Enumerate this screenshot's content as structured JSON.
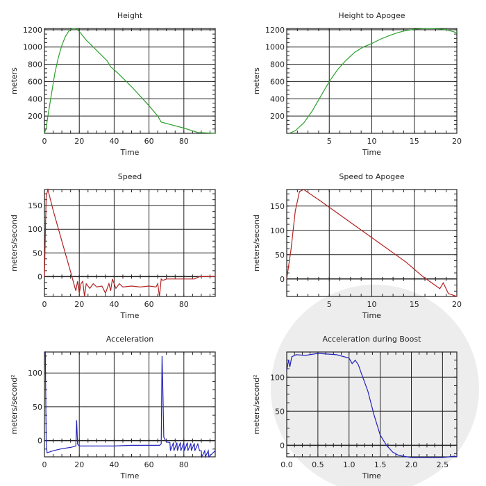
{
  "chart_data": [
    {
      "type": "line",
      "title": "Height",
      "xlabel": "Time",
      "ylabel": "meters",
      "xlim": [
        0,
        98
      ],
      "ylim": [
        0,
        1215
      ],
      "xticks": [
        0,
        20,
        40,
        60,
        80
      ],
      "yticks": [
        200,
        400,
        600,
        800,
        1000,
        1200
      ],
      "grid": true,
      "color": "#2ca02c",
      "x": [
        0,
        1,
        2,
        4,
        6,
        8,
        10,
        12,
        14,
        16,
        18,
        20,
        24,
        28,
        32,
        36,
        38,
        42,
        50,
        60,
        65,
        67,
        80,
        88,
        98
      ],
      "y": [
        0,
        60,
        200,
        450,
        700,
        880,
        1020,
        1120,
        1185,
        1215,
        1215,
        1180,
        1080,
        1000,
        920,
        840,
        770,
        700,
        540,
        320,
        200,
        130,
        60,
        10,
        0
      ]
    },
    {
      "type": "line",
      "title": "Height to Apogee",
      "xlabel": "Time",
      "ylabel": "meters",
      "xlim": [
        0,
        20
      ],
      "ylim": [
        0,
        1215
      ],
      "xticks": [
        5,
        10,
        15,
        20
      ],
      "yticks": [
        200,
        400,
        600,
        800,
        1000,
        1200
      ],
      "grid": true,
      "color": "#2ca02c",
      "x": [
        0.3,
        1,
        2,
        3,
        4,
        5,
        6,
        7,
        8,
        9,
        10,
        11,
        12,
        13,
        14,
        15,
        16,
        17,
        18,
        19,
        20
      ],
      "y": [
        0,
        30,
        120,
        260,
        430,
        600,
        740,
        850,
        940,
        1000,
        1040,
        1090,
        1130,
        1165,
        1190,
        1205,
        1213,
        1215,
        1210,
        1195,
        1165
      ]
    },
    {
      "type": "line",
      "title": "Speed",
      "xlabel": "Time",
      "ylabel": "meters/second",
      "xlim": [
        0,
        98
      ],
      "ylim": [
        -42,
        184
      ],
      "xticks": [
        0,
        20,
        40,
        60,
        80
      ],
      "yticks": [
        0,
        50,
        100,
        150
      ],
      "grid": true,
      "color": "#b22222",
      "x": [
        0,
        1,
        2,
        5,
        10,
        15,
        18,
        19,
        20,
        21,
        22,
        23,
        24,
        26,
        28,
        30,
        33,
        35,
        37,
        38,
        39,
        41,
        43,
        45,
        50,
        55,
        60,
        64,
        65,
        66,
        67,
        68,
        70,
        80,
        86,
        89,
        98
      ],
      "y": [
        0,
        170,
        184,
        140,
        75,
        10,
        -30,
        -10,
        -35,
        -15,
        -10,
        -42,
        -15,
        -25,
        -15,
        -22,
        -20,
        -35,
        -15,
        -30,
        -5,
        -25,
        -15,
        -22,
        -20,
        -22,
        -20,
        -22,
        -15,
        -42,
        -5,
        -8,
        -5,
        -5,
        -5,
        0,
        0
      ]
    },
    {
      "type": "line",
      "title": "Speed to Apogee",
      "xlabel": "Time",
      "ylabel": "meters/second",
      "xlim": [
        0,
        20
      ],
      "ylim": [
        -36,
        184
      ],
      "xticks": [
        5,
        10,
        15,
        20
      ],
      "yticks": [
        0,
        50,
        100,
        150
      ],
      "grid": true,
      "color": "#b22222",
      "x": [
        0,
        0.5,
        1,
        1.5,
        2,
        4,
        6,
        8,
        10,
        12,
        14,
        16,
        18,
        18.4,
        19,
        20
      ],
      "y": [
        0,
        60,
        140,
        180,
        184,
        160,
        135,
        110,
        85,
        60,
        35,
        5,
        -20,
        -8,
        -30,
        -36
      ]
    },
    {
      "type": "line",
      "title": "Acceleration",
      "xlabel": "Time",
      "ylabel": "meters/second²",
      "xlim": [
        0,
        98
      ],
      "ylim": [
        -24,
        131
      ],
      "xticks": [
        0,
        20,
        40,
        60,
        80
      ],
      "yticks": [
        0,
        50,
        100
      ],
      "grid": true,
      "color": "#2222bb",
      "x": [
        0,
        0.5,
        1,
        1.5,
        5,
        10,
        15,
        18,
        18.5,
        19,
        20,
        30,
        40,
        50,
        60,
        66,
        67,
        67.5,
        68,
        68.5,
        70,
        72,
        72.3,
        74,
        74.3,
        76,
        76.3,
        78,
        78.3,
        80,
        80.3,
        82,
        82.3,
        84,
        84.3,
        86,
        86.3,
        88,
        89,
        90,
        90.3,
        92,
        92.3,
        94,
        94.3,
        98
      ],
      "y": [
        130,
        131,
        0,
        -18,
        -15,
        -12,
        -10,
        -8,
        30,
        -5,
        -8,
        -8,
        -8,
        -7,
        -7,
        -7,
        -5,
        125,
        70,
        5,
        -2,
        -3,
        -15,
        -3,
        -15,
        -3,
        -15,
        -3,
        -15,
        -3,
        -15,
        -3,
        -15,
        -4,
        -15,
        -4,
        -15,
        -5,
        -15,
        -15,
        -24,
        -15,
        -24,
        -15,
        -24,
        -15
      ]
    },
    {
      "type": "line",
      "title": "Acceleration during Boost",
      "xlabel": "Time",
      "ylabel": "meters/second²",
      "xlim": [
        0,
        2.73
      ],
      "ylim": [
        -17,
        137
      ],
      "xticks": [
        0.0,
        0.5,
        1.0,
        1.5,
        2.0,
        2.5
      ],
      "xticklabels": [
        "0.0",
        "0.5",
        "1.0",
        "1.5",
        "2.0",
        "2.5"
      ],
      "yticks": [
        0,
        50,
        100
      ],
      "grid": true,
      "color": "#2222bb",
      "x": [
        0,
        0.03,
        0.05,
        0.08,
        0.15,
        0.3,
        0.5,
        0.8,
        1.0,
        1.05,
        1.1,
        1.15,
        1.2,
        1.3,
        1.4,
        1.5,
        1.6,
        1.7,
        1.8,
        2.0,
        2.5,
        2.7,
        2.73
      ],
      "y": [
        110,
        125,
        115,
        130,
        133,
        132,
        135,
        133,
        128,
        120,
        125,
        118,
        105,
        80,
        45,
        15,
        0,
        -10,
        -15,
        -18,
        -18,
        -16,
        -17
      ]
    }
  ]
}
